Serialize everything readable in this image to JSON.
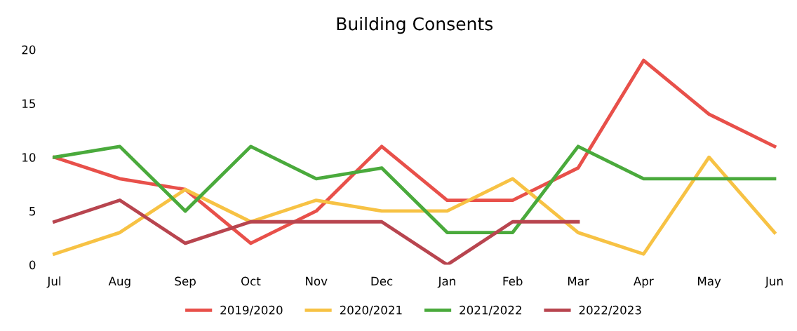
{
  "chart_data": {
    "type": "line",
    "title": "Building Consents",
    "categories": [
      "Jul",
      "Aug",
      "Sep",
      "Oct",
      "Nov",
      "Dec",
      "Jan",
      "Feb",
      "Mar",
      "Apr",
      "May",
      "Jun"
    ],
    "series": [
      {
        "name": "2019/2020",
        "color": "#e8504a",
        "values": [
          10,
          8,
          7,
          2,
          5,
          11,
          6,
          6,
          9,
          19,
          14,
          11
        ]
      },
      {
        "name": "2020/2021",
        "color": "#f7c244",
        "values": [
          1,
          3,
          7,
          4,
          6,
          5,
          5,
          8,
          3,
          1,
          10,
          3
        ]
      },
      {
        "name": "2021/2022",
        "color": "#4aaa3c",
        "values": [
          10,
          11,
          5,
          11,
          8,
          9,
          3,
          3,
          11,
          8,
          8,
          8
        ]
      },
      {
        "name": "2022/2023",
        "color": "#b8454f",
        "values": [
          4,
          6,
          2,
          4,
          4,
          4,
          0,
          4,
          4,
          null,
          null,
          null
        ]
      }
    ],
    "ylim": [
      0,
      20
    ],
    "yticks": [
      0,
      5,
      10,
      15,
      20
    ],
    "grid": false,
    "legend": "bottom",
    "marker": "none",
    "line_style": "solid"
  }
}
